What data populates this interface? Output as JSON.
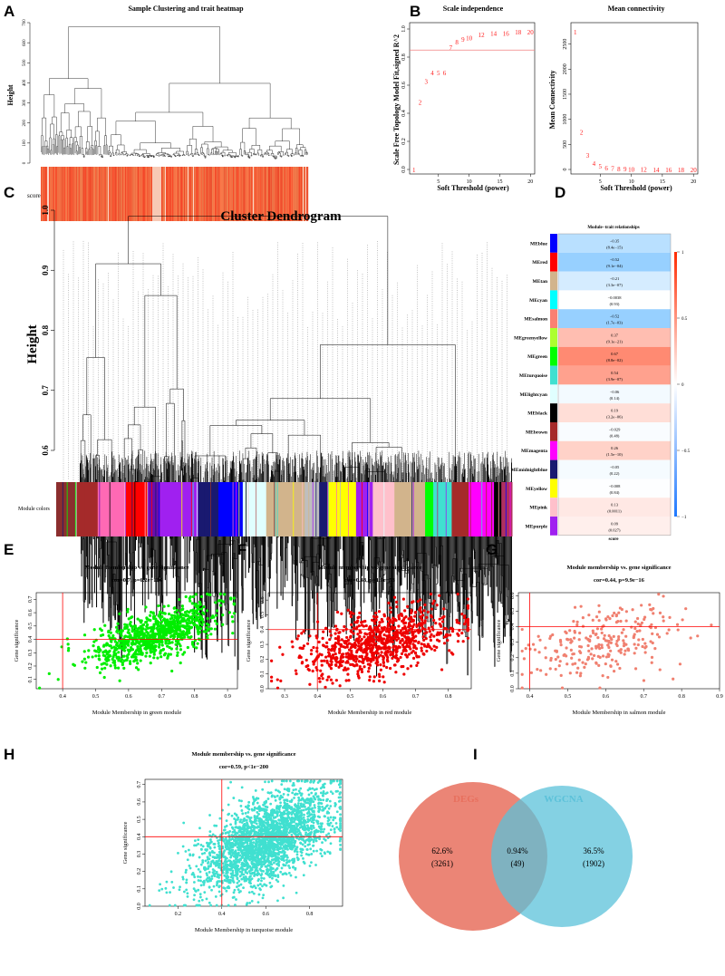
{
  "panels": {
    "A": "A",
    "B": "B",
    "C": "C",
    "D": "D",
    "E": "E",
    "F": "F",
    "G": "G",
    "H": "H",
    "I": "I"
  },
  "chart_data": [
    {
      "id": "A",
      "type": "dendrogram",
      "title": "Sample Clustering and trait heatmap",
      "ylabel": "Height",
      "yticks": [
        0,
        100,
        200,
        300,
        400,
        500,
        600,
        700
      ],
      "ylim": [
        0,
        700
      ],
      "trait_label": "score"
    },
    {
      "id": "B1",
      "type": "scatter",
      "title": "Scale independence",
      "xlabel": "Soft Threshold (power)",
      "ylabel": "Scale Free Topology Model Fit,signed R^2",
      "xticks": [
        5,
        10,
        15,
        20
      ],
      "yticks": [
        "0.0",
        "0.2",
        "0.4",
        "0.6",
        "0.8",
        "1.0"
      ],
      "ylim": [
        0,
        1
      ],
      "xlim": [
        1,
        20
      ],
      "hline": 0.85,
      "x": [
        1,
        2,
        3,
        4,
        5,
        6,
        7,
        8,
        9,
        10,
        12,
        14,
        16,
        18,
        20
      ],
      "values": [
        0.0,
        0.48,
        0.63,
        0.69,
        0.69,
        0.69,
        0.87,
        0.91,
        0.93,
        0.94,
        0.96,
        0.97,
        0.97,
        0.98,
        0.98
      ]
    },
    {
      "id": "B2",
      "type": "scatter",
      "title": "Mean connectivity",
      "xlabel": "Soft Threshold (power)",
      "ylabel": "Mean Connectivity",
      "xticks": [
        5,
        10,
        15,
        20
      ],
      "yticks": [
        0,
        500,
        1000,
        1500,
        2000,
        2500
      ],
      "ylim": [
        0,
        2800
      ],
      "xlim": [
        1,
        20
      ],
      "x": [
        1,
        2,
        3,
        4,
        5,
        6,
        7,
        8,
        9,
        10,
        12,
        14,
        16,
        18,
        20
      ],
      "values": [
        2750,
        750,
        290,
        130,
        70,
        40,
        30,
        20,
        15,
        10,
        5,
        3,
        2,
        1,
        1
      ]
    },
    {
      "id": "C",
      "type": "dendrogram",
      "title": "Cluster Dendrogram",
      "ylabel": "Height",
      "yticks": [
        "0.6",
        "0.7",
        "0.8",
        "0.9",
        "1.0"
      ],
      "ylim": [
        0.55,
        1.0
      ],
      "colors_label": "Module colors",
      "module_colors": [
        "#8b2e2e",
        "#a52a2a",
        "#ff69b4",
        "#ff0000",
        "#6a0dad",
        "#a020f0",
        "#191970",
        "#0000ff",
        "#e0ffff",
        "#d2b48c",
        "#bebebe",
        "#191970",
        "#ffff00",
        "#a020f0",
        "#ffc0cb",
        "#d2b48c",
        "#00ff00",
        "#40e0d0",
        "#a52a2a",
        "#ff00ff",
        "#000000",
        "#b03060"
      ]
    },
    {
      "id": "D",
      "type": "heatmap",
      "title": "Module−trait relationships",
      "xlabel": "score",
      "colorbar_ticks": [
        "1",
        "0.5",
        "0",
        "−0.5",
        "−1"
      ],
      "rows": [
        {
          "module": "MEblue",
          "color": "#0000ff",
          "cor": -0.35,
          "text": "−0.35",
          "p": "(8.4e−15)"
        },
        {
          "module": "MEred",
          "color": "#ff0000",
          "cor": -0.52,
          "text": "−0.52",
          "p": "(9.1e−04)"
        },
        {
          "module": "MEtan",
          "color": "#d2b48c",
          "cor": -0.21,
          "text": "−0.21",
          "p": "(3.3e−07)"
        },
        {
          "module": "MEcyan",
          "color": "#00ffff",
          "cor": -0.0038,
          "text": "−0.0038",
          "p": "(0.93)"
        },
        {
          "module": "MEsalmon",
          "color": "#fa8072",
          "cor": -0.52,
          "text": "−0.52",
          "p": "(1.7e−03)"
        },
        {
          "module": "MEgreenyellow",
          "color": "#adff2f",
          "cor": 0.37,
          "text": "0.37",
          "p": "(9.1e−21)"
        },
        {
          "module": "MEgreen",
          "color": "#00ff00",
          "cor": 0.67,
          "text": "0.67",
          "p": "(8.8e−02)"
        },
        {
          "module": "MEturquoise",
          "color": "#40e0d0",
          "cor": 0.54,
          "text": "0.54",
          "p": "(3.9e−07)"
        },
        {
          "module": "MElightcyan",
          "color": "#e0ffff",
          "cor": -0.06,
          "text": "−0.06",
          "p": "(0.14)"
        },
        {
          "module": "MEblack",
          "color": "#000000",
          "cor": 0.19,
          "text": "0.19",
          "p": "(3.2e−06)"
        },
        {
          "module": "MEbrown",
          "color": "#a52a2a",
          "cor": -0.029,
          "text": "−0.029",
          "p": "(0.48)"
        },
        {
          "module": "MEmagenta",
          "color": "#ff00ff",
          "cor": 0.26,
          "text": "0.26",
          "p": "(1.5e−10)"
        },
        {
          "module": "MEmidnightblue",
          "color": "#191970",
          "cor": -0.05,
          "text": "−0.05",
          "p": "(0.22)"
        },
        {
          "module": "MEyellow",
          "color": "#ffff00",
          "cor": -0.008,
          "text": "−0.008",
          "p": "(0.84)"
        },
        {
          "module": "MEpink",
          "color": "#ffc0cb",
          "cor": 0.13,
          "text": "0.13",
          "p": "(0.0011)"
        },
        {
          "module": "MEpurple",
          "color": "#a020f0",
          "cor": 0.09,
          "text": "0.09",
          "p": "(0.027)"
        }
      ]
    },
    {
      "id": "E",
      "type": "scatter",
      "title": "Module membership vs. gene significance",
      "subtitle": "cor=0.7, p=6.2e−136",
      "xlabel": "Module Membership in green module",
      "ylabel": "Gene significance",
      "color": "#00ee00",
      "xlim": [
        0.32,
        0.93
      ],
      "ylim": [
        0.03,
        0.75
      ],
      "xticks": [
        "0.4",
        "0.5",
        "0.6",
        "0.7",
        "0.8",
        "0.9"
      ],
      "yticks": [
        "0.1",
        "0.2",
        "0.3",
        "0.4",
        "0.5",
        "0.6",
        "0.7"
      ],
      "vline": 0.4,
      "hline": 0.4
    },
    {
      "id": "F",
      "type": "scatter",
      "title": "Module membership vs. gene significance",
      "subtitle": "cor=0.48, p=1.9e−53",
      "xlabel": "Module Membership in red module",
      "ylabel": "Gene significance",
      "color": "#ee0000",
      "xlim": [
        0.25,
        0.87
      ],
      "ylim": [
        0.0,
        0.65
      ],
      "xticks": [
        "0.3",
        "0.4",
        "0.5",
        "0.6",
        "0.7",
        "0.8"
      ],
      "yticks": [
        "0.0",
        "0.1",
        "0.2",
        "0.3",
        "0.4",
        "0.5",
        "0.6"
      ],
      "vline": 0.4,
      "hline": 0.4
    },
    {
      "id": "G",
      "type": "scatter",
      "title": "Module membership vs. gene significance",
      "subtitle": "cor=0.44, p=9.9e−16",
      "xlabel": "Module Membership in salmon module",
      "ylabel": "Gene significance",
      "color": "#f08070",
      "xlim": [
        0.37,
        0.9
      ],
      "ylim": [
        0.0,
        0.62
      ],
      "xticks": [
        "0.4",
        "0.5",
        "0.6",
        "0.7",
        "0.8",
        "0.9"
      ],
      "yticks": [
        "0.0",
        "0.1",
        "0.2",
        "0.3",
        "0.4",
        "0.5",
        "0.6"
      ],
      "vline": 0.4,
      "hline": 0.4
    },
    {
      "id": "H",
      "type": "scatter",
      "title": "Module membership vs. gene significance",
      "subtitle": "cor=0.59, p<1e−200",
      "xlabel": "Module Membership in turquoise module",
      "ylabel": "Gene significance",
      "color": "#40e0d0",
      "xlim": [
        0.05,
        0.95
      ],
      "ylim": [
        0.0,
        0.73
      ],
      "xticks": [
        "0.2",
        "0.4",
        "0.6",
        "0.8"
      ],
      "yticks": [
        "0.0",
        "0.1",
        "0.2",
        "0.3",
        "0.4",
        "0.5",
        "0.6",
        "0.7"
      ],
      "vline": 0.4,
      "hline": 0.4
    },
    {
      "id": "I",
      "type": "venn",
      "sets": [
        {
          "name": "DEGs",
          "color": "#e8705e"
        },
        {
          "name": "WGCNA",
          "color": "#5bc1d9"
        }
      ],
      "regions": [
        {
          "pct": "62.6%",
          "count": "(3261)"
        },
        {
          "pct": "0.94%",
          "count": "(49)"
        },
        {
          "pct": "36.5%",
          "count": "(1902)"
        }
      ]
    }
  ]
}
